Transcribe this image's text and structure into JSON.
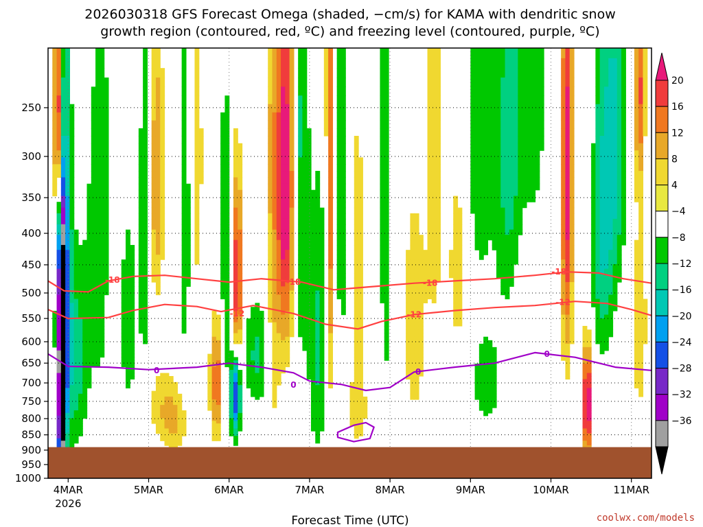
{
  "chart_data": {
    "type": "heatmap",
    "title": [
      "2026030318 GFS Forecast Omega (shaded, −cm/s) for KAMA with dendritic snow",
      "growth region (contoured, red, ºC) and freezing level (contoured, purple, ºC)"
    ],
    "xlabel": "Forecast Time (UTC)",
    "ylabel": "",
    "y_scale": "pressure (hPa, decreasing upward)",
    "ylim": [
      1000,
      200
    ],
    "y_ticks": [
      250,
      300,
      350,
      400,
      450,
      500,
      550,
      600,
      650,
      700,
      750,
      800,
      850,
      900,
      950,
      1000
    ],
    "x_ticks": [
      {
        "label": "4MAR",
        "day": 4,
        "sub": "2026"
      },
      {
        "label": "5MAR",
        "day": 5
      },
      {
        "label": "6MAR",
        "day": 6
      },
      {
        "label": "7MAR",
        "day": 7
      },
      {
        "label": "8MAR",
        "day": 8
      },
      {
        "label": "9MAR",
        "day": 9
      },
      {
        "label": "10MAR",
        "day": 10
      },
      {
        "label": "11MAR",
        "day": 11
      }
    ],
    "x_range_days": [
      3.75,
      11.25
    ],
    "grid": "dotted",
    "colorbar": {
      "labels": [
        "20",
        "16",
        "12",
        "8",
        "4",
        "−4",
        "−8",
        "−12",
        "−16",
        "−20",
        "−24",
        "−28",
        "−32",
        "−36"
      ],
      "colors": [
        "#e8197a",
        "#f03c3c",
        "#f07820",
        "#e8a828",
        "#f0d830",
        "#e8e840",
        "#ffffff",
        "#00c800",
        "#00d080",
        "#00c8b4",
        "#00a0f0",
        "#1450e6",
        "#7828c8",
        "#a000c8",
        "#a0a0a0",
        "#000000"
      ]
    },
    "ground_pressure": 890,
    "ground_color": "#a0522d",
    "contours": [
      {
        "label": "-18",
        "color": "#ff4040",
        "points": [
          [
            3.75,
            478
          ],
          [
            3.95,
            496
          ],
          [
            4.25,
            498
          ],
          [
            4.5,
            478
          ],
          [
            4.8,
            470
          ],
          [
            5.2,
            468
          ],
          [
            5.6,
            474
          ],
          [
            6.0,
            480
          ],
          [
            6.4,
            474
          ],
          [
            6.9,
            480
          ],
          [
            7.3,
            494
          ],
          [
            7.8,
            488
          ],
          [
            8.3,
            482
          ],
          [
            8.8,
            478
          ],
          [
            9.3,
            474
          ],
          [
            9.8,
            468
          ],
          [
            10.2,
            462
          ],
          [
            10.6,
            464
          ],
          [
            10.9,
            474
          ],
          [
            11.25,
            482
          ]
        ],
        "labels_at": [
          [
            4.55,
            476
          ],
          [
            6.8,
            480
          ],
          [
            8.5,
            482
          ],
          [
            10.1,
            462
          ]
        ]
      },
      {
        "label": "-12",
        "color": "#ff4040",
        "points": [
          [
            3.75,
            532
          ],
          [
            4.0,
            550
          ],
          [
            4.5,
            548
          ],
          [
            4.8,
            534
          ],
          [
            5.2,
            522
          ],
          [
            5.6,
            526
          ],
          [
            5.9,
            536
          ],
          [
            6.3,
            524
          ],
          [
            6.8,
            540
          ],
          [
            7.2,
            562
          ],
          [
            7.6,
            572
          ],
          [
            7.9,
            556
          ],
          [
            8.3,
            542
          ],
          [
            8.8,
            534
          ],
          [
            9.3,
            528
          ],
          [
            9.8,
            524
          ],
          [
            10.3,
            516
          ],
          [
            10.7,
            520
          ],
          [
            11.0,
            532
          ],
          [
            11.25,
            544
          ]
        ],
        "labels_at": [
          [
            6.1,
            540
          ],
          [
            8.3,
            542
          ],
          [
            10.15,
            518
          ]
        ]
      },
      {
        "label": "0",
        "color": "#a000c8",
        "points": [
          [
            3.75,
            628
          ],
          [
            4.0,
            658
          ],
          [
            4.5,
            660
          ],
          [
            5.0,
            666
          ],
          [
            5.6,
            660
          ],
          [
            6.0,
            650
          ],
          [
            6.4,
            660
          ],
          [
            6.8,
            674
          ],
          [
            7.0,
            695
          ],
          [
            7.4,
            704
          ],
          [
            7.7,
            720
          ],
          [
            8.0,
            712
          ],
          [
            8.3,
            672
          ],
          [
            8.8,
            660
          ],
          [
            9.3,
            650
          ],
          [
            9.8,
            625
          ],
          [
            10.3,
            636
          ],
          [
            10.8,
            660
          ],
          [
            11.25,
            668
          ]
        ],
        "labels_at": [
          [
            5.1,
            668
          ],
          [
            8.35,
            672
          ],
          [
            9.95,
            628
          ]
        ]
      },
      {
        "label": "0",
        "color": "#a000c8",
        "closed": true,
        "points": [
          [
            7.35,
            842
          ],
          [
            7.55,
            820
          ],
          [
            7.7,
            812
          ],
          [
            7.8,
            826
          ],
          [
            7.75,
            862
          ],
          [
            7.55,
            872
          ],
          [
            7.35,
            858
          ]
        ],
        "labels_at": [
          [
            6.8,
            705
          ]
        ]
      }
    ],
    "credit": "coolwx.com/models"
  }
}
